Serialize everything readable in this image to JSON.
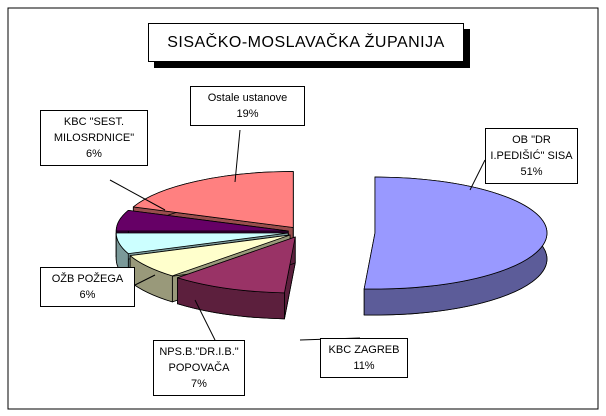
{
  "chart_data": {
    "type": "pie3d",
    "title": "SISAČKO-MOSLAVAČKA ŽUPANIJA",
    "categories": [
      "OB \"DR I.PEDIŠIĆ\" SISA",
      "KBC ZAGREB",
      "NPS.B.\"DR.I.B.\" POPOVAČA",
      "OŽB POŽEGA",
      "KBC \"SEST. MILOSRDNICE\"",
      "Ostale ustanove"
    ],
    "values": [
      51,
      11,
      7,
      6,
      6,
      19
    ],
    "value_labels": [
      "51%",
      "11%",
      "7%",
      "6%",
      "6%",
      "19%"
    ],
    "colors": [
      "#9999ff",
      "#993366",
      "#ffffcc",
      "#ccffff",
      "#660066",
      "#ff8080"
    ]
  }
}
